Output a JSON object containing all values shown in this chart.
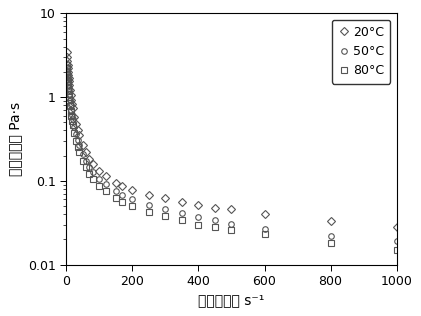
{
  "title": "",
  "xlabel": "剪切速率， s⁻¹",
  "ylabel": "表观粘度， Pa·s",
  "xlim": [
    0,
    1000
  ],
  "ylim": [
    0.01,
    10
  ],
  "x_ticks": [
    0,
    200,
    400,
    600,
    800,
    1000
  ],
  "y_ticks": [
    0.01,
    0.1,
    1,
    10
  ],
  "y_tick_labels": [
    "0.01",
    "0.1",
    "1",
    "10"
  ],
  "legend_labels": [
    "20°C",
    "50°C",
    "80°C"
  ],
  "legend_markers": [
    "D",
    "o",
    "s"
  ],
  "series_20C_x": [
    1,
    2,
    3,
    4,
    5,
    6,
    7,
    8,
    9,
    10,
    12,
    14,
    16,
    18,
    20,
    25,
    30,
    35,
    40,
    50,
    60,
    70,
    80,
    100,
    120,
    150,
    170,
    200,
    250,
    300,
    350,
    400,
    450,
    500,
    600,
    800,
    1000
  ],
  "series_20C_y": [
    3.5,
    3.0,
    2.7,
    2.4,
    2.2,
    2.0,
    1.85,
    1.7,
    1.55,
    1.4,
    1.2,
    1.05,
    0.92,
    0.82,
    0.74,
    0.58,
    0.48,
    0.4,
    0.35,
    0.27,
    0.22,
    0.185,
    0.16,
    0.13,
    0.115,
    0.095,
    0.088,
    0.078,
    0.068,
    0.062,
    0.056,
    0.052,
    0.048,
    0.046,
    0.04,
    0.033,
    0.028
  ],
  "series_50C_x": [
    1,
    2,
    3,
    4,
    5,
    6,
    7,
    8,
    9,
    10,
    12,
    14,
    16,
    18,
    20,
    25,
    30,
    35,
    40,
    50,
    60,
    70,
    80,
    100,
    120,
    150,
    170,
    200,
    250,
    300,
    350,
    400,
    450,
    500,
    600,
    800,
    1000
  ],
  "series_50C_y": [
    2.5,
    2.2,
    2.0,
    1.8,
    1.65,
    1.5,
    1.38,
    1.28,
    1.18,
    1.08,
    0.92,
    0.8,
    0.7,
    0.62,
    0.55,
    0.44,
    0.36,
    0.305,
    0.265,
    0.21,
    0.175,
    0.148,
    0.128,
    0.104,
    0.091,
    0.075,
    0.068,
    0.06,
    0.052,
    0.046,
    0.041,
    0.037,
    0.034,
    0.031,
    0.027,
    0.022,
    0.019
  ],
  "series_80C_x": [
    1,
    2,
    3,
    4,
    5,
    6,
    7,
    8,
    9,
    10,
    12,
    14,
    16,
    18,
    20,
    25,
    30,
    35,
    40,
    50,
    60,
    70,
    80,
    100,
    120,
    150,
    170,
    200,
    250,
    300,
    350,
    400,
    450,
    500,
    600,
    800,
    1000
  ],
  "series_80C_y": [
    2.2,
    1.9,
    1.72,
    1.55,
    1.4,
    1.28,
    1.18,
    1.09,
    1.0,
    0.92,
    0.78,
    0.68,
    0.59,
    0.52,
    0.47,
    0.37,
    0.3,
    0.255,
    0.22,
    0.175,
    0.145,
    0.122,
    0.106,
    0.086,
    0.075,
    0.062,
    0.056,
    0.05,
    0.043,
    0.038,
    0.034,
    0.03,
    0.028,
    0.026,
    0.023,
    0.018,
    0.015
  ],
  "marker_size": 4,
  "marker_color": "#555555",
  "marker_facecolor": "none",
  "markeredgewidth": 0.8,
  "background_color": "#ffffff",
  "font_size_labels": 10,
  "font_size_ticks": 9,
  "font_size_legend": 9
}
